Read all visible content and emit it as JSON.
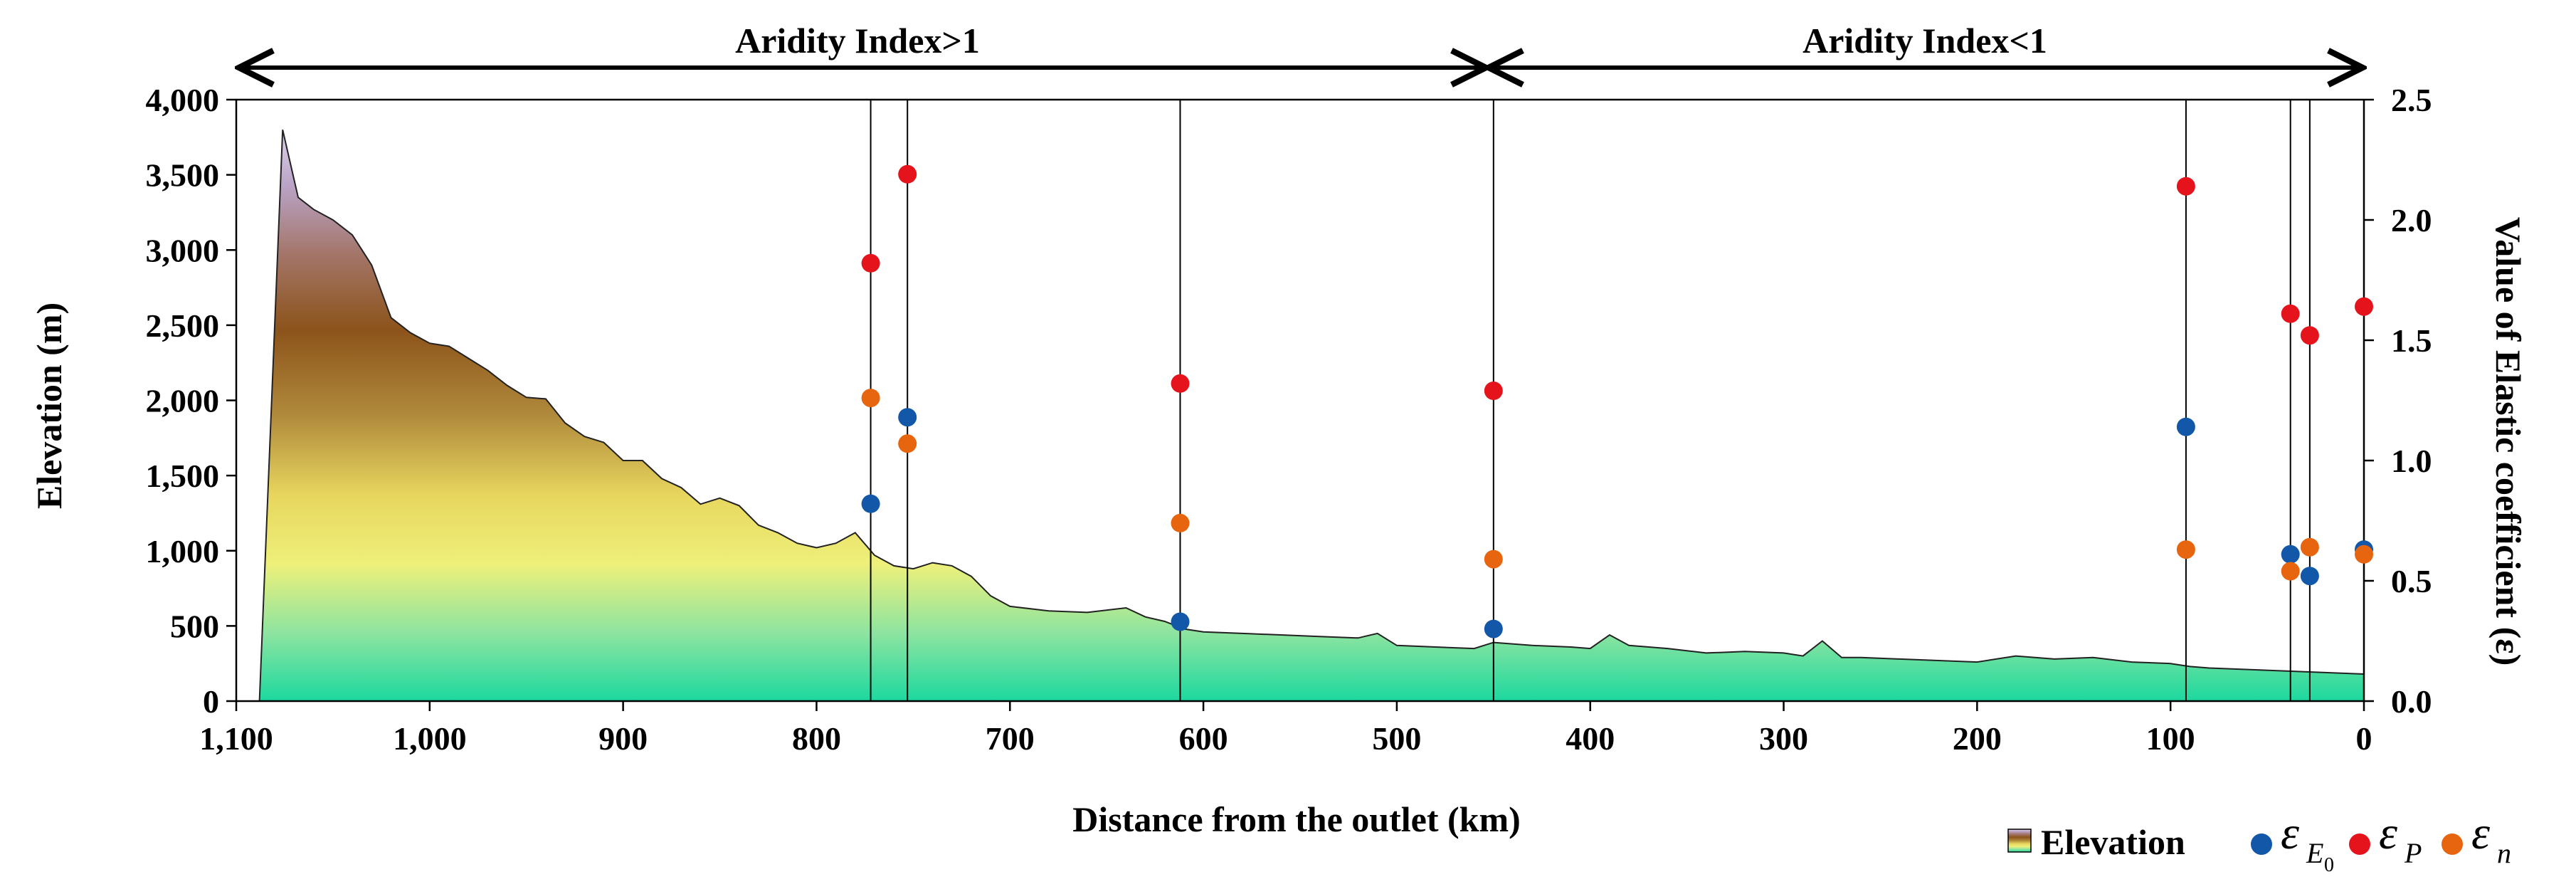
{
  "chart_data": {
    "type": "area+scatter",
    "xlabel": "Distance from the outlet (km)",
    "ylabel_left": "Elevation (m)",
    "ylabel_right": "Value of Elastic coefficient (ε)",
    "x_reversed": true,
    "xlim": [
      1100,
      0
    ],
    "ylim_left": [
      0,
      4000
    ],
    "ylim_right": [
      0,
      2.5
    ],
    "x_ticks": [
      1100,
      1000,
      900,
      800,
      700,
      600,
      500,
      400,
      300,
      200,
      100,
      0
    ],
    "x_tick_labels": [
      "1,100",
      "1,000",
      "900",
      "800",
      "700",
      "600",
      "500",
      "400",
      "300",
      "200",
      "100",
      "0"
    ],
    "y_left_ticks": [
      0,
      500,
      1000,
      1500,
      2000,
      2500,
      3000,
      3500,
      4000
    ],
    "y_left_tick_labels": [
      "0",
      "500",
      "1,000",
      "1,500",
      "2,000",
      "2,500",
      "3,000",
      "3,500",
      "4,000"
    ],
    "y_right_ticks": [
      0,
      0.5,
      1,
      1.5,
      2,
      2.5
    ],
    "y_right_tick_labels": [
      "0.0",
      "0.5",
      "1.0",
      "1.5",
      "2.0",
      "2.5"
    ],
    "regions": [
      {
        "label": "Aridity Index>1",
        "from": 1100,
        "to": 450
      },
      {
        "label": "Aridity Index<1",
        "from": 450,
        "to": 0
      }
    ],
    "vertical_lines": [
      772,
      753,
      612,
      450,
      92,
      38,
      28,
      0
    ],
    "elevation": {
      "name": "Elevation",
      "x": [
        1088,
        1076,
        1068,
        1060,
        1050,
        1040,
        1030,
        1020,
        1010,
        1000,
        990,
        980,
        970,
        960,
        950,
        940,
        930,
        920,
        910,
        900,
        890,
        880,
        870,
        860,
        850,
        840,
        830,
        820,
        810,
        800,
        790,
        780,
        770,
        760,
        750,
        740,
        730,
        720,
        710,
        700,
        680,
        660,
        640,
        630,
        620,
        610,
        600,
        580,
        560,
        540,
        520,
        510,
        500,
        480,
        460,
        450,
        430,
        410,
        400,
        390,
        380,
        360,
        340,
        320,
        300,
        290,
        280,
        270,
        260,
        240,
        220,
        200,
        180,
        160,
        140,
        120,
        100,
        90,
        80,
        60,
        40,
        20,
        0
      ],
      "y": [
        0,
        3800,
        3350,
        3270,
        3200,
        3100,
        2900,
        2550,
        2450,
        2380,
        2360,
        2280,
        2200,
        2100,
        2020,
        2010,
        1850,
        1760,
        1720,
        1600,
        1600,
        1480,
        1420,
        1310,
        1350,
        1300,
        1170,
        1120,
        1050,
        1020,
        1050,
        1120,
        970,
        900,
        880,
        920,
        900,
        830,
        700,
        630,
        600,
        590,
        620,
        560,
        530,
        480,
        460,
        450,
        440,
        430,
        420,
        450,
        370,
        360,
        350,
        390,
        370,
        360,
        350,
        440,
        370,
        350,
        320,
        330,
        320,
        300,
        400,
        290,
        290,
        280,
        270,
        260,
        300,
        280,
        290,
        260,
        250,
        230,
        220,
        210,
        200,
        190,
        180
      ]
    },
    "series": [
      {
        "name": "εE0",
        "color": "#1257a8",
        "x": [
          772,
          753,
          612,
          450,
          92,
          38,
          28,
          0
        ],
        "y": [
          0.82,
          1.18,
          0.33,
          0.3,
          1.14,
          0.61,
          0.52,
          0.63
        ]
      },
      {
        "name": "εP",
        "color": "#e5141c",
        "x": [
          772,
          753,
          612,
          450,
          92,
          38,
          28,
          0
        ],
        "y": [
          1.82,
          2.19,
          1.32,
          1.29,
          2.14,
          1.61,
          1.52,
          1.64
        ]
      },
      {
        "name": "εn",
        "color": "#e8650f",
        "x": [
          772,
          753,
          612,
          450,
          92,
          38,
          28,
          0
        ],
        "y": [
          1.26,
          1.07,
          0.74,
          0.59,
          0.63,
          0.54,
          0.64,
          0.61
        ]
      }
    ],
    "legend": {
      "position": "bottom-right",
      "items": [
        {
          "label": "Elevation",
          "kind": "area"
        },
        {
          "symbol": "ε",
          "sub": "E",
          "subsub": "0",
          "color": "#1257a8"
        },
        {
          "symbol": "ε",
          "sub": "P",
          "color": "#e5141c"
        },
        {
          "symbol": "ε",
          "sub": "n",
          "color": "#e8650f"
        }
      ]
    }
  }
}
